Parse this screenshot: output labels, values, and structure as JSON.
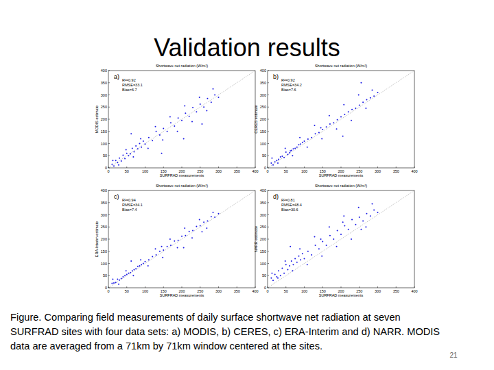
{
  "slide": {
    "title": "Validation results",
    "caption": [
      "Figure. Comparing field measurements of daily surface shortwave net radiation at seven",
      "SURFRAD sites with four data sets: a) MODIS, b) CERES, c) ERA-Interim and d) NARR. MODIS",
      "data are averaged from a 71km by 71km window centered at the sites."
    ],
    "page": "21"
  },
  "chart_data": [
    {
      "type": "scatter",
      "title": "Shortwave net radiation (W/m²)",
      "label": "a)",
      "x_label": "SURFRAD measurements",
      "y_label": "MODIS estimate",
      "annotations": [
        "R²=0.92",
        "RMSE=33.1",
        "Bias=6.7"
      ],
      "color": "#1a1ae6",
      "marker": "dot",
      "grid": false,
      "xlim": [
        0,
        400
      ],
      "ylim": [
        0,
        400
      ],
      "xticks": [
        0,
        50,
        100,
        150,
        200,
        250,
        300,
        350,
        400
      ],
      "yticks": [
        0,
        50,
        100,
        150,
        200,
        250,
        300,
        350,
        400
      ],
      "x": [
        10,
        15,
        20,
        25,
        30,
        35,
        40,
        45,
        50,
        55,
        60,
        65,
        70,
        75,
        80,
        85,
        90,
        95,
        100,
        110,
        120,
        130,
        140,
        150,
        160,
        170,
        180,
        190,
        200,
        210,
        220,
        230,
        240,
        250,
        260,
        270,
        280,
        290,
        300,
        12,
        28,
        48,
        68,
        88,
        108,
        128,
        148,
        168,
        188,
        208,
        228,
        248,
        268,
        285,
        62,
        145,
        205,
        255
      ],
      "values": [
        15,
        8,
        30,
        22,
        40,
        28,
        52,
        38,
        60,
        50,
        58,
        80,
        66,
        90,
        78,
        100,
        85,
        110,
        98,
        125,
        112,
        150,
        135,
        162,
        150,
        185,
        172,
        205,
        195,
        225,
        212,
        248,
        230,
        262,
        250,
        285,
        270,
        300,
        290,
        30,
        12,
        75,
        45,
        120,
        80,
        170,
        115,
        210,
        150,
        255,
        190,
        290,
        235,
        325,
        140,
        60,
        120,
        180
      ]
    },
    {
      "type": "scatter",
      "title": "Shortwave net radiation (W/m²)",
      "label": "b)",
      "x_label": "SURFRAD measurements",
      "y_label": "CERES estimate",
      "annotations": [
        "R²=0.92",
        "RMSE=34.2",
        "Bias=7.6"
      ],
      "color": "#1a1ae6",
      "marker": "dot",
      "grid": false,
      "xlim": [
        0,
        400
      ],
      "ylim": [
        0,
        400
      ],
      "xticks": [
        0,
        50,
        100,
        150,
        200,
        250,
        300,
        350,
        400
      ],
      "yticks": [
        0,
        50,
        100,
        150,
        200,
        250,
        300,
        350,
        400
      ],
      "x": [
        10,
        15,
        20,
        25,
        30,
        35,
        40,
        45,
        50,
        55,
        60,
        65,
        70,
        75,
        80,
        85,
        90,
        95,
        100,
        110,
        120,
        130,
        140,
        150,
        160,
        170,
        180,
        190,
        200,
        210,
        220,
        230,
        240,
        250,
        260,
        270,
        280,
        290,
        300,
        12,
        28,
        48,
        68,
        88,
        108,
        128,
        148,
        168,
        188,
        208,
        228,
        248,
        268,
        285,
        62,
        145,
        205,
        255
      ],
      "values": [
        20,
        12,
        25,
        30,
        35,
        45,
        48,
        42,
        65,
        55,
        62,
        72,
        78,
        80,
        85,
        95,
        98,
        105,
        110,
        118,
        125,
        140,
        145,
        158,
        168,
        180,
        185,
        198,
        210,
        220,
        230,
        240,
        245,
        258,
        270,
        280,
        288,
        295,
        310,
        40,
        20,
        80,
        50,
        125,
        85,
        175,
        120,
        215,
        160,
        260,
        195,
        300,
        245,
        320,
        70,
        165,
        130,
        350
      ]
    },
    {
      "type": "scatter",
      "title": "Shortwave net radiation (W/m²)",
      "label": "c)",
      "x_label": "SURFRAD measurements",
      "y_label": "ERA-Interim estimate",
      "annotations": [
        "R²=0.94",
        "RMSE=34.1",
        "Bias=7.4"
      ],
      "color": "#1a1ae6",
      "marker": "dot",
      "grid": false,
      "xlim": [
        0,
        400
      ],
      "ylim": [
        0,
        400
      ],
      "xticks": [
        0,
        50,
        100,
        150,
        200,
        250,
        300,
        350,
        400
      ],
      "yticks": [
        0,
        50,
        100,
        150,
        200,
        250,
        300,
        350,
        400
      ],
      "x": [
        10,
        15,
        20,
        25,
        30,
        35,
        40,
        45,
        50,
        55,
        60,
        65,
        70,
        75,
        80,
        85,
        90,
        95,
        100,
        110,
        120,
        130,
        140,
        150,
        160,
        170,
        180,
        190,
        200,
        210,
        220,
        230,
        240,
        250,
        260,
        270,
        280,
        290,
        300,
        12,
        28,
        48,
        68,
        88,
        108,
        128,
        148,
        168,
        188,
        208,
        228,
        248,
        268,
        285,
        62,
        145,
        205,
        255
      ],
      "values": [
        18,
        20,
        22,
        35,
        32,
        38,
        45,
        50,
        55,
        60,
        62,
        70,
        75,
        78,
        88,
        90,
        95,
        100,
        108,
        115,
        128,
        135,
        150,
        155,
        170,
        175,
        192,
        195,
        212,
        215,
        232,
        235,
        252,
        255,
        270,
        275,
        292,
        290,
        305,
        35,
        15,
        70,
        50,
        115,
        90,
        160,
        125,
        200,
        165,
        245,
        205,
        280,
        245,
        310,
        110,
        170,
        165,
        230
      ]
    },
    {
      "type": "scatter",
      "title": "Shortwave net radiation (W/m²)",
      "label": "d)",
      "x_label": "SURFRAD measurements",
      "y_label": "NARR estimate",
      "annotations": [
        "R²=0.81",
        "RMSE=48.4",
        "Bias=30.6"
      ],
      "color": "#1a1ae6",
      "marker": "dot",
      "grid": false,
      "xlim": [
        0,
        400
      ],
      "ylim": [
        0,
        400
      ],
      "xticks": [
        0,
        50,
        100,
        150,
        200,
        250,
        300,
        350,
        400
      ],
      "yticks": [
        0,
        50,
        100,
        150,
        200,
        250,
        300,
        350,
        400
      ],
      "x": [
        10,
        15,
        20,
        25,
        30,
        35,
        40,
        45,
        50,
        55,
        60,
        65,
        70,
        75,
        80,
        85,
        90,
        95,
        100,
        110,
        120,
        130,
        140,
        150,
        160,
        170,
        180,
        190,
        200,
        210,
        220,
        230,
        240,
        250,
        260,
        270,
        280,
        290,
        300,
        12,
        28,
        48,
        68,
        88,
        108,
        128,
        148,
        168,
        188,
        208,
        228,
        248,
        268,
        285,
        62,
        145,
        205,
        255
      ],
      "values": [
        40,
        30,
        55,
        45,
        70,
        50,
        80,
        60,
        95,
        75,
        90,
        110,
        95,
        120,
        105,
        130,
        115,
        140,
        120,
        150,
        135,
        175,
        160,
        190,
        175,
        215,
        200,
        235,
        220,
        255,
        240,
        280,
        260,
        290,
        275,
        305,
        295,
        320,
        310,
        60,
        40,
        110,
        70,
        160,
        95,
        210,
        130,
        250,
        170,
        295,
        200,
        330,
        250,
        345,
        170,
        200,
        270,
        240
      ]
    }
  ]
}
